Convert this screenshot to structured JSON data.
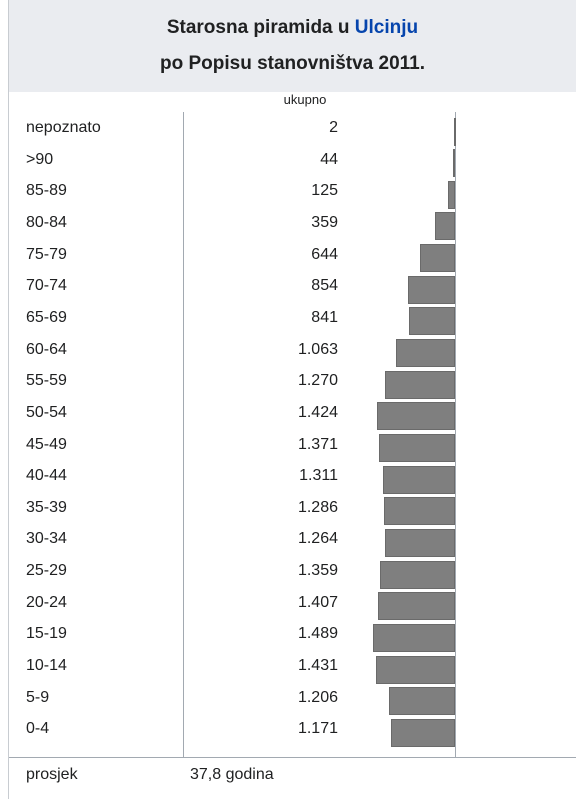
{
  "header": {
    "title_prefix": "Starosna piramida u ",
    "title_link": "Ulcinju",
    "subtitle": "po Popisu stanovništva 2011."
  },
  "column_header": "ukupno",
  "colors": {
    "bar": "#7f7f7f",
    "header_bg": "#eaecf0",
    "link": "#0645ad"
  },
  "chart_data": {
    "type": "bar",
    "orientation": "horizontal",
    "categories": [
      "nepoznato",
      ">90",
      "85-89",
      "80-84",
      "75-79",
      "70-74",
      "65-69",
      "60-64",
      "55-59",
      "50-54",
      "45-49",
      "40-44",
      "35-39",
      "30-34",
      "25-29",
      "20-24",
      "15-19",
      "10-14",
      "5-9",
      "0-4"
    ],
    "value_labels": [
      "2",
      "44",
      "125",
      "359",
      "644",
      "854",
      "841",
      "1.063",
      "1.270",
      "1.424",
      "1.371",
      "1.311",
      "1.286",
      "1.264",
      "1.359",
      "1.407",
      "1.489",
      "1.431",
      "1.206",
      "1.171"
    ],
    "values": [
      2,
      44,
      125,
      359,
      644,
      854,
      841,
      1063,
      1270,
      1424,
      1371,
      1311,
      1286,
      1264,
      1359,
      1407,
      1489,
      1431,
      1206,
      1171
    ],
    "series": [
      {
        "name": "ukupno",
        "values": [
          2,
          44,
          125,
          359,
          644,
          854,
          841,
          1063,
          1270,
          1424,
          1371,
          1311,
          1286,
          1264,
          1359,
          1407,
          1489,
          1431,
          1206,
          1171
        ]
      }
    ]
  },
  "footer": {
    "label": "prosjek",
    "value": "37,8 godina"
  }
}
